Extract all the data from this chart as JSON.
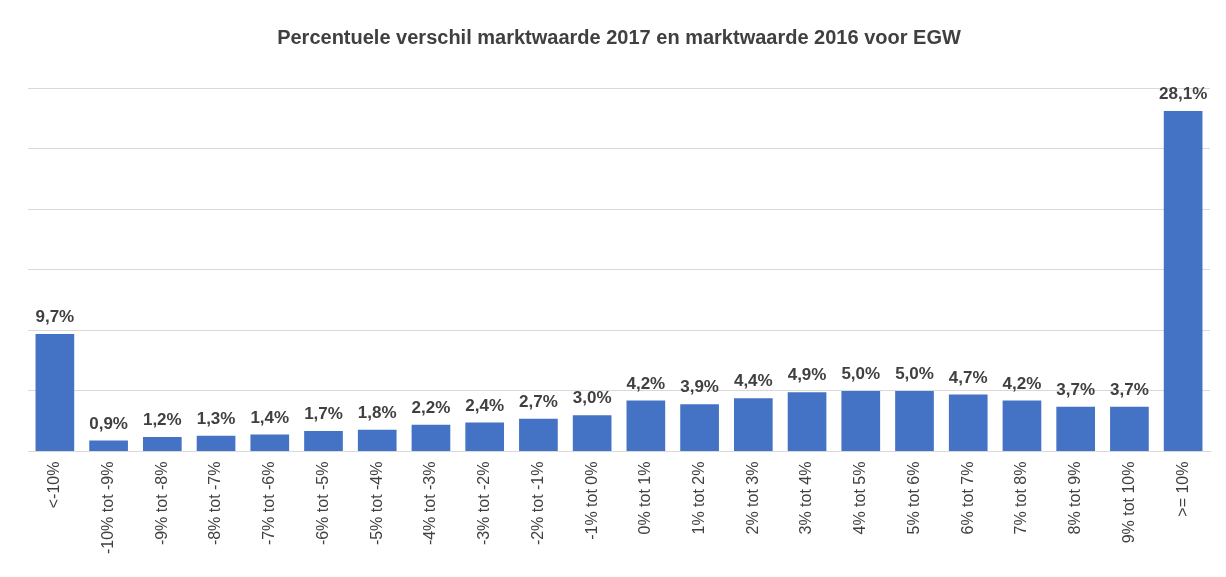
{
  "chart_data": {
    "type": "bar",
    "title": "Percentuele verschil marktwaarde 2017 en marktwaarde 2016 voor EGW",
    "categories": [
      "<-10%",
      "-10% tot -9%",
      "-9% tot -8%",
      "-8% tot -7%",
      "-7% tot -6%",
      "-6% tot -5%",
      "-5% tot -4%",
      "-4% tot -3%",
      "-3% tot -2%",
      "-2% tot -1%",
      "-1% tot 0%",
      "0% tot 1%",
      "1% tot 2%",
      "2% tot 3%",
      "3% tot 4%",
      "4% tot 5%",
      "5% tot 6%",
      "6% tot 7%",
      "7% tot 8%",
      "8% tot 9%",
      "9% tot 10%",
      ">= 10%"
    ],
    "values": [
      9.7,
      0.9,
      1.2,
      1.3,
      1.4,
      1.7,
      1.8,
      2.2,
      2.4,
      2.7,
      3.0,
      4.2,
      3.9,
      4.4,
      4.9,
      5.0,
      5.0,
      4.7,
      4.2,
      3.7,
      3.7,
      28.1
    ],
    "value_labels": [
      "9,7%",
      "0,9%",
      "1,2%",
      "1,3%",
      "1,4%",
      "1,7%",
      "1,8%",
      "2,2%",
      "2,4%",
      "2,7%",
      "3,0%",
      "4,2%",
      "3,9%",
      "4,4%",
      "4,9%",
      "5,0%",
      "5,0%",
      "4,7%",
      "4,2%",
      "3,7%",
      "3,7%",
      "28,1%"
    ],
    "color": "#4472c4",
    "ylim": [
      0,
      30
    ],
    "yticks": [
      {
        "value": 0,
        "label": null
      },
      {
        "value": 5,
        "label": null
      },
      {
        "value": 10,
        "label": null
      },
      {
        "value": 15,
        "label": null
      },
      {
        "value": 20,
        "label": null
      },
      {
        "value": 25,
        "label": null
      },
      {
        "value": 30,
        "label": null
      }
    ],
    "grid": "y",
    "tick_labels": "x"
  }
}
